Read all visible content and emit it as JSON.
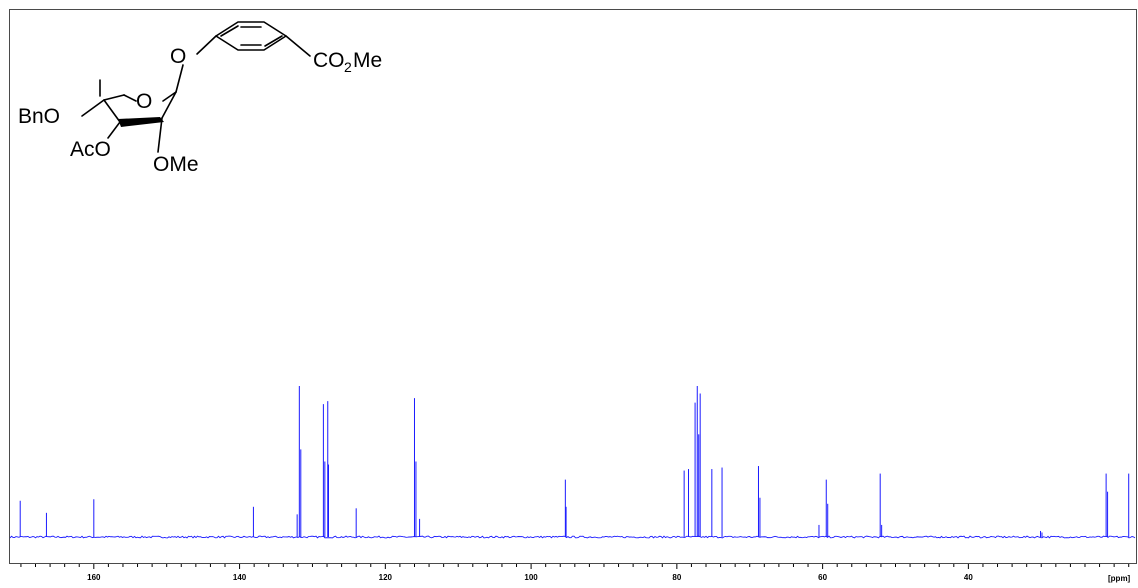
{
  "chart_data": {
    "type": "line",
    "title": "",
    "xlabel": "[ppm]",
    "ylabel": "",
    "xlim": [
      171.5,
      17.0
    ],
    "x_reversed": true,
    "ylim": [
      0,
      1
    ],
    "grid": false,
    "legend": "none",
    "line_color": "#1a1aff",
    "axis_color": "#000000",
    "baseline": 0.0,
    "noise_amplitude": 0.006,
    "ticks": [
      160,
      140,
      120,
      100,
      80,
      60,
      40
    ],
    "tick_labels": [
      "160",
      "140",
      "120",
      "100",
      "80",
      "60",
      "40"
    ],
    "minor_tick_step": 2,
    "peaks": [
      {
        "x": 170.1,
        "y": 0.24
      },
      {
        "x": 166.5,
        "y": 0.16
      },
      {
        "x": 160.0,
        "y": 0.25
      },
      {
        "x": 138.1,
        "y": 0.2
      },
      {
        "x": 132.1,
        "y": 0.15
      },
      {
        "x": 131.8,
        "y": 1.0
      },
      {
        "x": 131.6,
        "y": 0.58
      },
      {
        "x": 128.5,
        "y": 0.88
      },
      {
        "x": 128.3,
        "y": 0.5
      },
      {
        "x": 127.9,
        "y": 0.9
      },
      {
        "x": 127.8,
        "y": 0.48
      },
      {
        "x": 124.0,
        "y": 0.19
      },
      {
        "x": 116.0,
        "y": 0.92
      },
      {
        "x": 115.8,
        "y": 0.5
      },
      {
        "x": 115.3,
        "y": 0.12
      },
      {
        "x": 95.3,
        "y": 0.38
      },
      {
        "x": 95.2,
        "y": 0.2
      },
      {
        "x": 79.0,
        "y": 0.44
      },
      {
        "x": 78.4,
        "y": 0.45
      },
      {
        "x": 77.5,
        "y": 0.89
      },
      {
        "x": 77.2,
        "y": 1.0
      },
      {
        "x": 77.0,
        "y": 0.68
      },
      {
        "x": 76.8,
        "y": 0.95
      },
      {
        "x": 75.2,
        "y": 0.45
      },
      {
        "x": 73.8,
        "y": 0.46
      },
      {
        "x": 68.8,
        "y": 0.47
      },
      {
        "x": 68.6,
        "y": 0.26
      },
      {
        "x": 60.5,
        "y": 0.08
      },
      {
        "x": 59.5,
        "y": 0.38
      },
      {
        "x": 59.3,
        "y": 0.22
      },
      {
        "x": 52.1,
        "y": 0.42
      },
      {
        "x": 51.9,
        "y": 0.08
      },
      {
        "x": 30.1,
        "y": 0.04
      },
      {
        "x": 29.9,
        "y": 0.03
      },
      {
        "x": 21.1,
        "y": 0.42
      },
      {
        "x": 20.9,
        "y": 0.3
      },
      {
        "x": 18.0,
        "y": 0.42
      }
    ]
  },
  "structure": {
    "labels": {
      "o_aryl": "O",
      "ester_co": "CO",
      "ester_sub": "2",
      "ester_me": "Me",
      "bno": "BnO",
      "ring_o": "O",
      "aco": "AcO",
      "ome": "OMe"
    }
  }
}
